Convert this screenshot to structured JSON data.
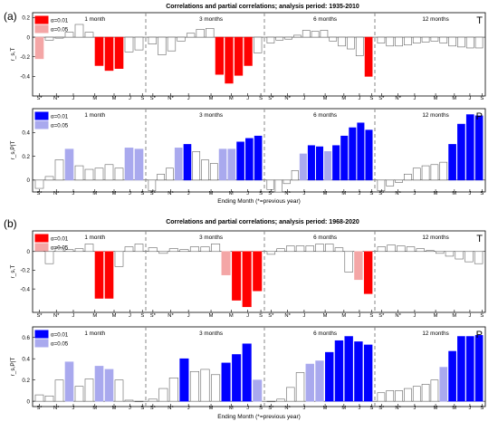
{
  "figure": {
    "colors": {
      "red_strong": "#ff0000",
      "red_light": "#f4a6a6",
      "blue_strong": "#0000ff",
      "blue_light": "#a9a9ee",
      "nonsig_fill": "#ffffff",
      "nonsig_edge": "#666666",
      "divider": "#888888"
    }
  },
  "chart_data": [
    {
      "panel": "(a)",
      "title": "Correlations and partial correlations; analysis period: 1935-2010",
      "subplots": [
        {
          "type": "bar",
          "corner_label": "T",
          "ylabel": "r_s,T",
          "ylim": [
            -0.6,
            0.25
          ],
          "yticks": [
            "-0.4",
            "-0.2",
            "0",
            "0.2"
          ],
          "xtick_labels": [
            "S*",
            "N*",
            "J",
            "M",
            "M",
            "J",
            "S"
          ],
          "window_labels": [
            "1 month",
            "3 months",
            "6 months",
            "12 months"
          ],
          "legend": [
            {
              "label": "α=0.01",
              "color": "#ff0000"
            },
            {
              "label": "α=0.05",
              "color": "#f4a6a6"
            }
          ],
          "values": [
            [
              -0.22,
              -0.03,
              -0.01,
              0.05,
              0.13,
              0.05,
              -0.29,
              -0.34,
              -0.32,
              -0.15,
              -0.13
            ],
            [
              -0.07,
              -0.18,
              -0.14,
              -0.04,
              0.04,
              0.08,
              0.09,
              -0.38,
              -0.47,
              -0.39,
              -0.29,
              -0.16
            ],
            [
              -0.06,
              -0.03,
              -0.02,
              0.02,
              0.07,
              0.06,
              0.07,
              -0.04,
              -0.09,
              -0.12,
              -0.19,
              -0.4
            ],
            [
              -0.06,
              -0.09,
              -0.09,
              -0.08,
              -0.06,
              -0.05,
              -0.04,
              -0.06,
              -0.09,
              -0.1,
              -0.11,
              -0.11
            ]
          ],
          "significance": [
            [
              2,
              0,
              0,
              0,
              0,
              0,
              1,
              1,
              1,
              0,
              0
            ],
            [
              0,
              0,
              0,
              0,
              0,
              0,
              0,
              1,
              1,
              1,
              1,
              0
            ],
            [
              0,
              0,
              0,
              0,
              0,
              0,
              0,
              0,
              0,
              0,
              0,
              1
            ],
            [
              0,
              0,
              0,
              0,
              0,
              0,
              0,
              0,
              0,
              0,
              0,
              0
            ]
          ]
        },
        {
          "type": "bar",
          "corner_label": "P",
          "ylabel": "r_s,P|T",
          "xlabel": "Ending Month (*=previous year)",
          "ylim": [
            -0.1,
            0.6
          ],
          "yticks": [
            "0",
            "0.2",
            "0.4"
          ],
          "xtick_labels": [
            "S*",
            "N*",
            "J",
            "M",
            "M",
            "J",
            "S"
          ],
          "window_labels": [
            "1 month",
            "3 months",
            "6 months",
            "12 months"
          ],
          "legend": [
            {
              "label": "α=0.01",
              "color": "#0000ff"
            },
            {
              "label": "α=0.05",
              "color": "#a9a9ee"
            }
          ],
          "values": [
            [
              -0.07,
              0.03,
              0.17,
              0.26,
              0.12,
              0.09,
              0.1,
              0.13,
              0.1,
              0.27,
              0.26
            ],
            [
              -0.09,
              0.05,
              0.1,
              0.27,
              0.3,
              0.24,
              0.17,
              0.14,
              0.26,
              0.26,
              0.32,
              0.35,
              0.37
            ],
            [
              -0.08,
              -0.1,
              -0.03,
              0.08,
              0.22,
              0.29,
              0.28,
              0.24,
              0.29,
              0.37,
              0.44,
              0.48,
              0.42
            ],
            [
              -0.09,
              -0.05,
              -0.02,
              0.05,
              0.1,
              0.12,
              0.13,
              0.15,
              0.3,
              0.47,
              0.55,
              0.54
            ]
          ],
          "significance": [
            [
              0,
              0,
              0,
              2,
              0,
              0,
              0,
              0,
              0,
              2,
              2
            ],
            [
              0,
              0,
              0,
              2,
              1,
              0,
              0,
              0,
              2,
              2,
              1,
              1,
              1
            ],
            [
              0,
              0,
              0,
              0,
              2,
              1,
              1,
              2,
              1,
              1,
              1,
              1,
              1
            ],
            [
              0,
              0,
              0,
              0,
              0,
              0,
              0,
              0,
              1,
              1,
              1,
              1
            ]
          ]
        }
      ]
    },
    {
      "panel": "(b)",
      "title": "Correlations and partial correlations; analysis period: 1968-2020",
      "subplots": [
        {
          "type": "bar",
          "corner_label": "T",
          "ylabel": "r_s,T",
          "ylim": [
            -0.65,
            0.22
          ],
          "yticks": [
            "-0.4",
            "-0.2",
            "0"
          ],
          "xtick_labels": [
            "S*",
            "N*",
            "J",
            "M",
            "M",
            "J",
            "S"
          ],
          "window_labels": [
            "1 month",
            "3 months",
            "6 months",
            "12 months"
          ],
          "legend": [
            {
              "label": "α=0.01",
              "color": "#ff0000"
            },
            {
              "label": "α=0.05",
              "color": "#f4a6a6"
            }
          ],
          "values": [
            [
              0.05,
              -0.13,
              0.04,
              0.02,
              0.03,
              0.08,
              -0.5,
              -0.5,
              -0.16,
              0.05,
              0.08
            ],
            [
              0.04,
              -0.02,
              0.03,
              0.02,
              0.05,
              0.05,
              0.08,
              -0.25,
              -0.52,
              -0.59,
              -0.42
            ],
            [
              -0.03,
              0.03,
              0.06,
              0.06,
              0.06,
              0.08,
              0.08,
              0.04,
              -0.22,
              -0.3,
              -0.45
            ],
            [
              0.05,
              0.07,
              0.06,
              0.05,
              0.03,
              0.01,
              -0.02,
              -0.05,
              -0.08,
              -0.11,
              -0.13
            ]
          ],
          "significance": [
            [
              0,
              0,
              0,
              0,
              0,
              0,
              1,
              1,
              0,
              0,
              0
            ],
            [
              0,
              0,
              0,
              0,
              0,
              0,
              0,
              2,
              1,
              1,
              1
            ],
            [
              0,
              0,
              0,
              0,
              0,
              0,
              0,
              0,
              0,
              2,
              1
            ],
            [
              0,
              0,
              0,
              0,
              0,
              0,
              0,
              0,
              0,
              0,
              0
            ]
          ]
        },
        {
          "type": "bar",
          "corner_label": "P",
          "ylabel": "r_s,P|T",
          "xlabel": "Ending Month (*=previous year)",
          "ylim": [
            -0.05,
            0.7
          ],
          "yticks": [
            "0",
            "0.2",
            "0.4",
            "0.6"
          ],
          "xtick_labels": [
            "S*",
            "N*",
            "J",
            "M",
            "M",
            "J",
            "S"
          ],
          "window_labels": [
            "1 month",
            "3 months",
            "6 months",
            "12 months"
          ],
          "legend": [
            {
              "label": "α=0.01",
              "color": "#0000ff"
            },
            {
              "label": "α=0.05",
              "color": "#a9a9ee"
            }
          ],
          "values": [
            [
              0.06,
              0.05,
              0.2,
              0.37,
              0.14,
              0.21,
              0.33,
              0.3,
              0.2,
              0.01,
              0.0
            ],
            [
              0.02,
              0.12,
              0.22,
              0.4,
              0.28,
              0.3,
              0.25,
              0.36,
              0.44,
              0.54,
              0.2
            ],
            [
              0.0,
              0.02,
              0.13,
              0.27,
              0.35,
              0.38,
              0.46,
              0.57,
              0.61,
              0.56,
              0.53
            ],
            [
              0.08,
              0.1,
              0.1,
              0.12,
              0.14,
              0.16,
              0.2,
              0.32,
              0.47,
              0.61,
              0.61,
              0.62
            ]
          ],
          "significance": [
            [
              0,
              0,
              0,
              2,
              0,
              0,
              2,
              2,
              0,
              0,
              0
            ],
            [
              0,
              0,
              0,
              1,
              0,
              0,
              0,
              1,
              1,
              1,
              2
            ],
            [
              0,
              0,
              0,
              0,
              2,
              2,
              1,
              1,
              1,
              1,
              1
            ],
            [
              0,
              0,
              0,
              0,
              0,
              0,
              0,
              2,
              1,
              1,
              1,
              1
            ]
          ]
        }
      ]
    }
  ]
}
